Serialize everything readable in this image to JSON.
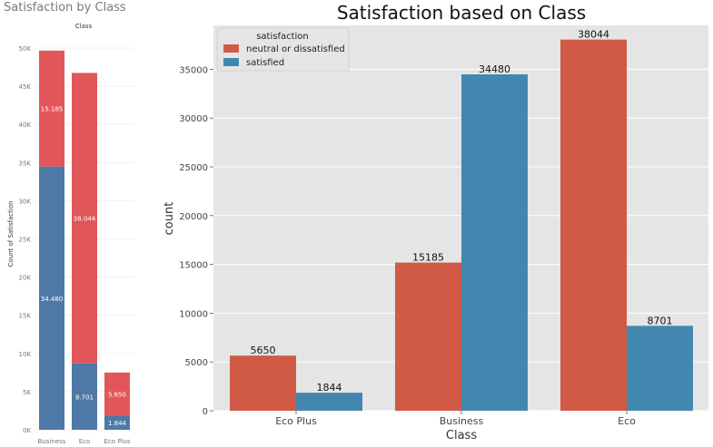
{
  "chart_data": [
    {
      "type": "bar",
      "stacked": true,
      "title": "Satisfaction by Class",
      "header": "Class",
      "ylabel": "Count of Satisfaction",
      "xlabel": "",
      "categories": [
        "Business",
        "Eco",
        "Eco Plus"
      ],
      "series": [
        {
          "name": "satisfied",
          "values": [
            34480,
            8701,
            1844
          ],
          "labels": [
            "34.480",
            "8.701",
            "1.844"
          ]
        },
        {
          "name": "neutral or dissatisfied",
          "values": [
            15185,
            38044,
            5650
          ],
          "labels": [
            "15.185",
            "38.044",
            "5.650"
          ]
        }
      ],
      "ylim": [
        0,
        50000
      ],
      "yticks": [
        0,
        5000,
        10000,
        15000,
        20000,
        25000,
        30000,
        35000,
        40000,
        45000,
        50000
      ],
      "ytick_labels": [
        "0K",
        "5K",
        "10K",
        "15K",
        "20K",
        "25K",
        "30K",
        "35K",
        "40K",
        "45K",
        "50K"
      ],
      "grid": true,
      "colors": {
        "satisfied": "#4e79a7",
        "neutral or dissatisfied": "#e15759"
      }
    },
    {
      "type": "bar",
      "stacked": false,
      "title": "Satisfaction based on Class",
      "xlabel": "Class",
      "ylabel": "count",
      "categories": [
        "Eco Plus",
        "Business",
        "Eco"
      ],
      "series": [
        {
          "name": "neutral or dissatisfied",
          "values": [
            5650,
            15185,
            38044
          ],
          "labels": [
            "5650",
            "15185",
            "38044"
          ]
        },
        {
          "name": "satisfied",
          "values": [
            1844,
            34480,
            8701
          ],
          "labels": [
            "1844",
            "34480",
            "8701"
          ]
        }
      ],
      "ylim": [
        0,
        39500
      ],
      "yticks": [
        0,
        5000,
        10000,
        15000,
        20000,
        25000,
        30000,
        35000
      ],
      "ytick_labels": [
        "0",
        "5000",
        "10000",
        "15000",
        "20000",
        "25000",
        "30000",
        "35000"
      ],
      "legend": {
        "title": "satisfaction",
        "placement": "top-left",
        "entries": [
          "neutral or dissatisfied",
          "satisfied"
        ]
      },
      "grid": true,
      "colors": {
        "neutral or dissatisfied": "#d05a45",
        "satisfied": "#4287b0",
        "background": "#e5e5e5"
      }
    }
  ]
}
